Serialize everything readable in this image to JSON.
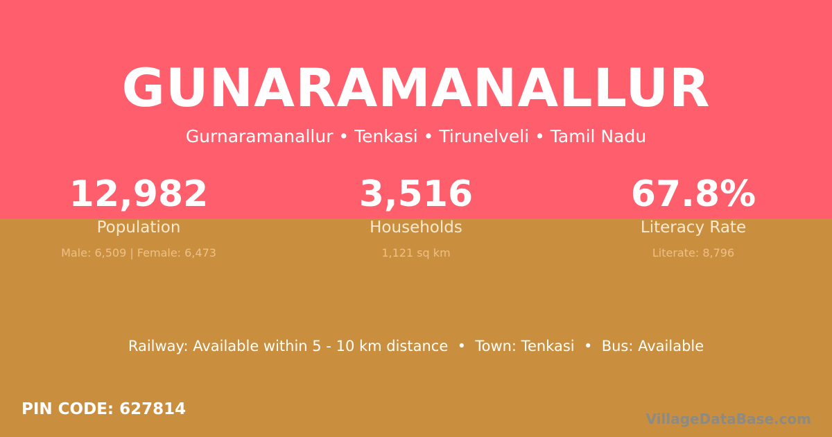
{
  "colors": {
    "top": "#ff5e6c",
    "bottom": "#ca8f3e"
  },
  "title": "GUNARAMANALLUR",
  "subtitle": "Gurnaramanallur • Tenkasi • Tirunelveli • Tamil Nadu",
  "stats": [
    {
      "value": "12,982",
      "label": "Population",
      "sub": "Male: 6,509 | Female: 6,473"
    },
    {
      "value": "3,516",
      "label": "Households",
      "sub": "1,121 sq km"
    },
    {
      "value": "67.8%",
      "label": "Literacy Rate",
      "sub": "Literate: 8,796"
    }
  ],
  "info": "Railway: Available within 5 - 10 km distance  •  Town: Tenkasi  •  Bus: Available",
  "pin": "PIN CODE: 627814",
  "brand": "VillageDataBase.com"
}
